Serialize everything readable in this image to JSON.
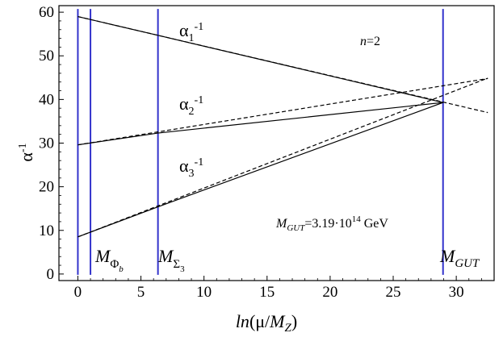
{
  "chart_data": {
    "type": "line",
    "xlabel": {
      "italic": "ln",
      "rest": "(μ/",
      "m": "M",
      "sub": "Z",
      "close": ")"
    },
    "ylabel": {
      "base": "α",
      "sup": "-1"
    },
    "xlim": [
      -1.5,
      33
    ],
    "ylim": [
      -1.5,
      61.5
    ],
    "xticks": [
      0,
      5,
      10,
      15,
      20,
      25,
      30
    ],
    "yticks": [
      0,
      10,
      20,
      30,
      40,
      50,
      60
    ],
    "grid": false,
    "annotations": {
      "n_label": {
        "italic": "n",
        "rest": "=2"
      },
      "mgut_value": {
        "m": "M",
        "sub": "GUT",
        "value": "=3.19·10",
        "exp": "14",
        "unit": " GeV"
      },
      "alpha1": {
        "base": "α",
        "sub": "1",
        "sup": "-1"
      },
      "alpha2": {
        "base": "α",
        "sub": "2",
        "sup": "-1"
      },
      "alpha3": {
        "base": "α",
        "sub": "3",
        "sup": "-1"
      },
      "m_phi_b": {
        "m": "M",
        "sub": "Φ",
        "subsub": "b"
      },
      "m_sigma3": {
        "m": "M",
        "sub": "Σ",
        "subsub": "3"
      },
      "m_gut": {
        "m": "M",
        "sub": "GUT"
      }
    },
    "vertical_lines": [
      {
        "name": "m-z-line",
        "x": 0.0
      },
      {
        "name": "m-phi-b-line",
        "x": 1.0
      },
      {
        "name": "m-sigma3-line",
        "x": 6.35
      },
      {
        "name": "m-gut-line",
        "x": 28.95
      }
    ],
    "series": [
      {
        "style": "solid",
        "points": [
          [
            0,
            59.0
          ],
          [
            6.35,
            54.7
          ],
          [
            28.95,
            39.3
          ]
        ]
      },
      {
        "style": "solid",
        "points": [
          [
            0,
            29.6
          ],
          [
            6.35,
            32.3
          ],
          [
            28.95,
            39.3
          ]
        ]
      },
      {
        "style": "solid",
        "points": [
          [
            0,
            8.5
          ],
          [
            1.0,
            9.6
          ],
          [
            6.35,
            15.4
          ],
          [
            28.95,
            39.3
          ]
        ]
      },
      {
        "style": "dashed",
        "points": [
          [
            0,
            59.0
          ],
          [
            32.5,
            37.0
          ]
        ]
      },
      {
        "style": "dashed",
        "points": [
          [
            0,
            29.6
          ],
          [
            32.5,
            44.8
          ]
        ]
      },
      {
        "style": "dashed",
        "points": [
          [
            0,
            8.5
          ],
          [
            32.5,
            44.9
          ]
        ]
      }
    ],
    "colors": {
      "vertical_line": "#3333cc",
      "line": "#000000",
      "frame": "#000000"
    }
  }
}
